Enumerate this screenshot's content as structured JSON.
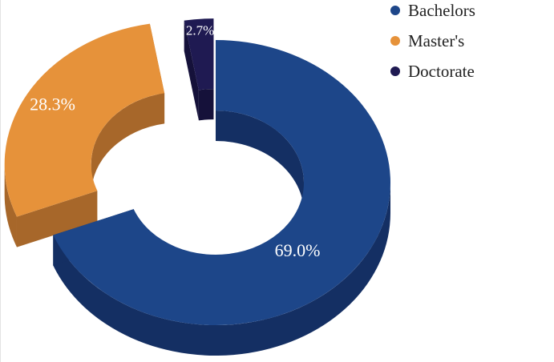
{
  "chart_data": {
    "type": "pie",
    "variant": "3d-donut-exploded",
    "title": "",
    "slices": [
      {
        "name": "Bachelors",
        "value": 69.0,
        "label": "69.0%",
        "color": "#1d4689",
        "side_color": "#142f63"
      },
      {
        "name": "Master's",
        "value": 28.3,
        "label": "28.3%",
        "color": "#e6923a",
        "side_color": "#a7672a"
      },
      {
        "name": "Doctorate",
        "value": 2.7,
        "label": "2.7%",
        "color": "#1f1a52",
        "side_color": "#15113a"
      }
    ],
    "legend_position": "top-right"
  }
}
